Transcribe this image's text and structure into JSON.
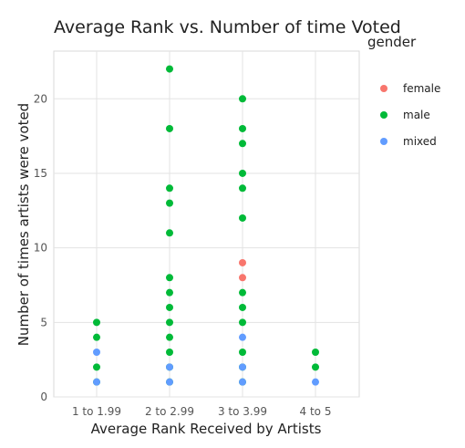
{
  "chart_data": {
    "type": "scatter",
    "title": "Average Rank vs. Number of time Voted",
    "xlabel": "Average Rank Received by Artists",
    "ylabel": "Number of times artists were voted",
    "categories": [
      "1 to 1.99",
      "2 to 2.99",
      "3 to 3.99",
      "4 to 5"
    ],
    "ylim": [
      0,
      23.2
    ],
    "yticks": [
      0,
      5,
      10,
      15,
      20
    ],
    "grid": true,
    "legend": {
      "title": "gender",
      "placement": "right"
    },
    "series": [
      {
        "name": "female",
        "color": "#F8766D",
        "points": [
          {
            "x": "3 to 3.99",
            "y": 9
          },
          {
            "x": "3 to 3.99",
            "y": 8
          }
        ]
      },
      {
        "name": "male",
        "color": "#00BA38",
        "points": [
          {
            "x": "1 to 1.99",
            "y": 5
          },
          {
            "x": "1 to 1.99",
            "y": 4
          },
          {
            "x": "1 to 1.99",
            "y": 2
          },
          {
            "x": "1 to 1.99",
            "y": 1
          },
          {
            "x": "2 to 2.99",
            "y": 22
          },
          {
            "x": "2 to 2.99",
            "y": 18
          },
          {
            "x": "2 to 2.99",
            "y": 14
          },
          {
            "x": "2 to 2.99",
            "y": 13
          },
          {
            "x": "2 to 2.99",
            "y": 11
          },
          {
            "x": "2 to 2.99",
            "y": 8
          },
          {
            "x": "2 to 2.99",
            "y": 7
          },
          {
            "x": "2 to 2.99",
            "y": 6
          },
          {
            "x": "2 to 2.99",
            "y": 5
          },
          {
            "x": "2 to 2.99",
            "y": 4
          },
          {
            "x": "2 to 2.99",
            "y": 3
          },
          {
            "x": "2 to 2.99",
            "y": 2
          },
          {
            "x": "2 to 2.99",
            "y": 1
          },
          {
            "x": "3 to 3.99",
            "y": 20
          },
          {
            "x": "3 to 3.99",
            "y": 18
          },
          {
            "x": "3 to 3.99",
            "y": 17
          },
          {
            "x": "3 to 3.99",
            "y": 15
          },
          {
            "x": "3 to 3.99",
            "y": 14
          },
          {
            "x": "3 to 3.99",
            "y": 12
          },
          {
            "x": "3 to 3.99",
            "y": 7
          },
          {
            "x": "3 to 3.99",
            "y": 6
          },
          {
            "x": "3 to 3.99",
            "y": 5
          },
          {
            "x": "3 to 3.99",
            "y": 3
          },
          {
            "x": "3 to 3.99",
            "y": 2
          },
          {
            "x": "3 to 3.99",
            "y": 1
          },
          {
            "x": "4 to 5",
            "y": 3
          },
          {
            "x": "4 to 5",
            "y": 2
          }
        ]
      },
      {
        "name": "mixed",
        "color": "#619CFF",
        "points": [
          {
            "x": "1 to 1.99",
            "y": 3
          },
          {
            "x": "1 to 1.99",
            "y": 1
          },
          {
            "x": "2 to 2.99",
            "y": 2
          },
          {
            "x": "2 to 2.99",
            "y": 1
          },
          {
            "x": "3 to 3.99",
            "y": 4
          },
          {
            "x": "3 to 3.99",
            "y": 2
          },
          {
            "x": "3 to 3.99",
            "y": 1
          },
          {
            "x": "4 to 5",
            "y": 1
          }
        ]
      }
    ]
  }
}
